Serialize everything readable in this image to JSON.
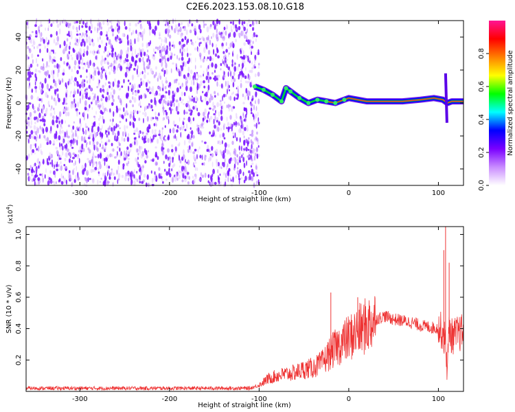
{
  "title": "C2E6.2023.153.08.10.G18",
  "chart_data": [
    {
      "type": "heatmap",
      "xlabel": "Height of straight line (km)",
      "ylabel": "Frequency (Hz)",
      "xlim": [
        -360,
        128
      ],
      "ylim": [
        -50,
        50
      ],
      "xticks": [
        -300,
        -200,
        -100,
        0,
        100
      ],
      "yticks": [
        -40,
        -20,
        0,
        20,
        40
      ],
      "colorbar": {
        "label": "Normalized spectral amplitude",
        "range": [
          0,
          1
        ],
        "ticks": [
          "0.0",
          "0.2",
          "0.4",
          "0.6",
          "0.8"
        ],
        "colormap": [
          "#ffffff",
          "#c98cff",
          "#7a00ff",
          "#0000ff",
          "#00ffff",
          "#00ff00",
          "#ffff00",
          "#ff8000",
          "#ff0000",
          "#ff1493"
        ]
      },
      "signal_track": {
        "x": [
          -105,
          -95,
          -85,
          -75,
          -70,
          -65,
          -55,
          -45,
          -35,
          -25,
          -15,
          -5,
          0,
          20,
          40,
          60,
          80,
          95,
          105,
          110,
          115,
          128
        ],
        "y": [
          10,
          8,
          5,
          1,
          9,
          7,
          3,
          0,
          2,
          1,
          0,
          2,
          3,
          1,
          1,
          1,
          2,
          3,
          2,
          0,
          1,
          1
        ]
      },
      "noise_region": [
        -360,
        -100
      ]
    },
    {
      "type": "line",
      "xlabel": "Height of straight line (km)",
      "ylabel": "SNR (10 * v/v)",
      "scale_note": "(x10",
      "scale_exp": "4",
      "xlim": [
        -360,
        128
      ],
      "ylim": [
        0,
        1.05
      ],
      "xticks": [
        -300,
        -200,
        -100,
        0,
        100
      ],
      "yticks": [
        "0.2",
        "0.4",
        "0.6",
        "0.8",
        "1.0"
      ],
      "series": [
        {
          "color": "#ee3333",
          "x": [
            -360,
            -300,
            -200,
            -110,
            -100,
            -90,
            -80,
            -70,
            -60,
            -50,
            -40,
            -30,
            -20,
            -10,
            0,
            10,
            20,
            30,
            40,
            50,
            60,
            70,
            80,
            90,
            100,
            105,
            108,
            110,
            112,
            115,
            120,
            128
          ],
          "y": [
            0.02,
            0.02,
            0.02,
            0.02,
            0.04,
            0.08,
            0.1,
            0.11,
            0.12,
            0.14,
            0.15,
            0.18,
            0.25,
            0.3,
            0.34,
            0.38,
            0.42,
            0.46,
            0.48,
            0.46,
            0.45,
            0.44,
            0.42,
            0.41,
            0.4,
            0.38,
            0.3,
            0.15,
            0.4,
            0.35,
            0.36,
            0.38
          ]
        }
      ],
      "spikes": [
        {
          "x": -20,
          "y": 0.63
        },
        {
          "x": 10,
          "y": 0.6
        },
        {
          "x": 106,
          "y": 0.9
        },
        {
          "x": 108,
          "y": 1.05
        },
        {
          "x": 112,
          "y": 0.82
        }
      ]
    }
  ]
}
